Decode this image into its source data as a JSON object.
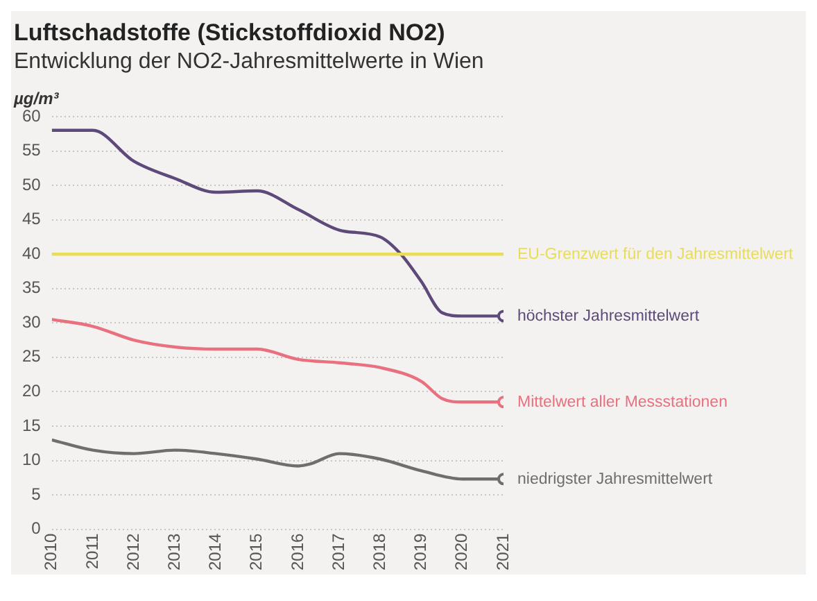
{
  "chart_data": {
    "type": "line",
    "title": "Luftschadstoffe (Stickstoffdioxid NO2)",
    "subtitle": "Entwicklung der NO2-Jahresmittelwerte in Wien",
    "ylabel": "µg/m³",
    "xlim": [
      2010,
      2021
    ],
    "xticks": [
      2010,
      2011,
      2012,
      2013,
      2014,
      2015,
      2016,
      2017,
      2018,
      2019,
      2020,
      2021
    ],
    "ylim": [
      0,
      60
    ],
    "yticks": [
      0,
      5,
      10,
      15,
      20,
      25,
      30,
      35,
      40,
      45,
      50,
      55,
      60
    ],
    "grid": "y",
    "legend": false,
    "line_style": "solid",
    "ref_lines": [
      {
        "axis": "y",
        "value": 40,
        "label": "EU-Grenzwert für den Jahresmittelwert",
        "color": "#e8dc5a"
      }
    ],
    "series": [
      {
        "name": "höchster Jahresmittelwert",
        "color": "#5e4a7a",
        "x": [
          2010,
          2011,
          2012,
          2013,
          2014,
          2015,
          2016,
          2017,
          2018,
          2018.5,
          2019,
          2019.5,
          2020,
          2021
        ],
        "values": [
          58,
          58,
          53.5,
          51,
          49,
          49.2,
          46.5,
          43.5,
          42.5,
          40,
          36,
          31.5,
          31,
          31
        ]
      },
      {
        "name": "Mittelwert aller Messstationen",
        "color": "#e8707f",
        "x": [
          2010,
          2011,
          2012,
          2013,
          2014,
          2015,
          2016,
          2017,
          2018,
          2019,
          2019.5,
          2020,
          2021
        ],
        "values": [
          30.5,
          29.5,
          27.5,
          26.5,
          26.2,
          26.2,
          24.7,
          24.2,
          23.5,
          21.5,
          19,
          18.5,
          18.5
        ]
      },
      {
        "name": "niedrigster Jahresmittelwert",
        "color": "#6e6e6e",
        "x": [
          2010,
          2011,
          2012,
          2013,
          2014,
          2015,
          2016,
          2016.3,
          2017,
          2018,
          2019,
          2020,
          2021
        ],
        "values": [
          13,
          11.5,
          11,
          11.5,
          11,
          10.2,
          9.2,
          9.5,
          11,
          10.2,
          8.5,
          7.3,
          7.3
        ]
      }
    ]
  }
}
